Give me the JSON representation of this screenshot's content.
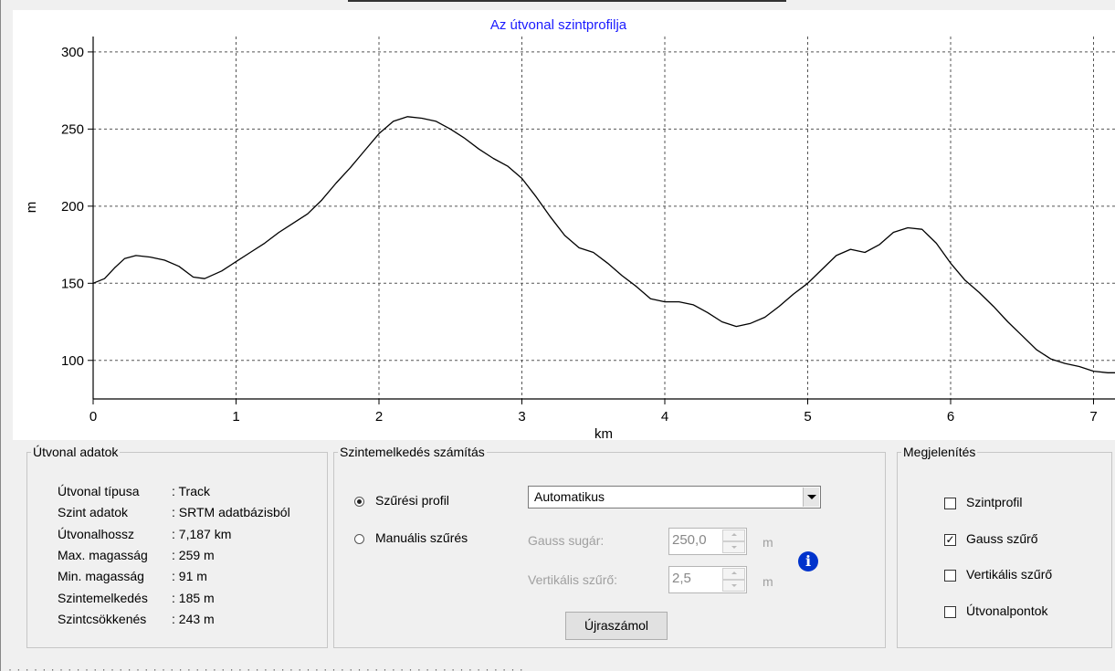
{
  "chart_data": {
    "type": "line",
    "title": "Az útvonal szintprofilja",
    "xlabel": "km",
    "ylabel": "m",
    "xlim": [
      0,
      7.2
    ],
    "ylim": [
      75,
      310
    ],
    "x_ticks": [
      "0",
      "1",
      "2",
      "3",
      "4",
      "5",
      "6",
      "7"
    ],
    "y_ticks": [
      "100",
      "150",
      "200",
      "250",
      "300"
    ],
    "grid": true,
    "series": [
      {
        "x": [
          0,
          0.08,
          0.15,
          0.22,
          0.3,
          0.4,
          0.5,
          0.6,
          0.7,
          0.78,
          0.9,
          1.0,
          1.1,
          1.2,
          1.3,
          1.4,
          1.5,
          1.6,
          1.7,
          1.8,
          1.9,
          2.0,
          2.1,
          2.2,
          2.3,
          2.4,
          2.5,
          2.6,
          2.7,
          2.8,
          2.9,
          3.0,
          3.1,
          3.2,
          3.3,
          3.4,
          3.5,
          3.6,
          3.7,
          3.8,
          3.9,
          4.0,
          4.1,
          4.2,
          4.3,
          4.4,
          4.5,
          4.6,
          4.7,
          4.8,
          4.9,
          5.0,
          5.1,
          5.2,
          5.3,
          5.4,
          5.5,
          5.6,
          5.7,
          5.8,
          5.9,
          6.0,
          6.1,
          6.2,
          6.3,
          6.4,
          6.5,
          6.6,
          6.7,
          6.8,
          6.9,
          7.0,
          7.1,
          7.187
        ],
        "y": [
          150,
          153,
          160,
          166,
          168,
          167,
          165,
          161,
          154,
          153,
          158,
          164,
          170,
          176,
          183,
          189,
          195,
          204,
          215,
          225,
          236,
          247,
          255,
          258,
          257,
          255,
          250,
          244,
          237,
          231,
          226,
          218,
          206,
          193,
          181,
          173,
          170,
          163,
          155,
          148,
          140,
          138,
          138,
          136,
          131,
          125,
          122,
          124,
          128,
          135,
          143,
          150,
          159,
          168,
          172,
          170,
          175,
          183,
          186,
          185,
          176,
          163,
          152,
          144,
          135,
          125,
          116,
          107,
          101,
          98,
          96,
          93,
          92,
          92
        ]
      }
    ]
  },
  "route_panel": {
    "legend": "Útvonal adatok",
    "rows": [
      {
        "label": "Útvonal típusa",
        "value": ": Track"
      },
      {
        "label": "Szint adatok",
        "value": ": SRTM adatbázisból"
      },
      {
        "label": "Útvonalhossz",
        "value": ": 7,187 km"
      },
      {
        "label": "Max. magasság",
        "value": ": 259 m"
      },
      {
        "label": "Min. magasság",
        "value": ": 91 m"
      },
      {
        "label": "Szintemelkedés",
        "value": ": 185 m"
      },
      {
        "label": "Szintcsökkenés",
        "value": ": 243 m"
      }
    ]
  },
  "calc_panel": {
    "legend": "Szintemelkedés számítás",
    "radio_filter_profile": "Szűrési profil",
    "radio_manual": "Manuális szűrés",
    "selected_radio": "Szűrési profil",
    "profile_value": "Automatikus",
    "gauss_label": "Gauss sugár:",
    "gauss_value": "250,0",
    "gauss_unit": "m",
    "vert_label": "Vertikális szűrő:",
    "vert_value": "2,5",
    "vert_unit": "m",
    "info_icon": "i",
    "recalc_button": "Újraszámol"
  },
  "display_panel": {
    "legend": "Megjelenítés",
    "checks": [
      {
        "label": "Szintprofil",
        "checked": false
      },
      {
        "label": "Gauss szűrő",
        "checked": true
      },
      {
        "label": "Vertikális szűrő",
        "checked": false
      },
      {
        "label": "Útvonalpontok",
        "checked": false
      }
    ]
  }
}
